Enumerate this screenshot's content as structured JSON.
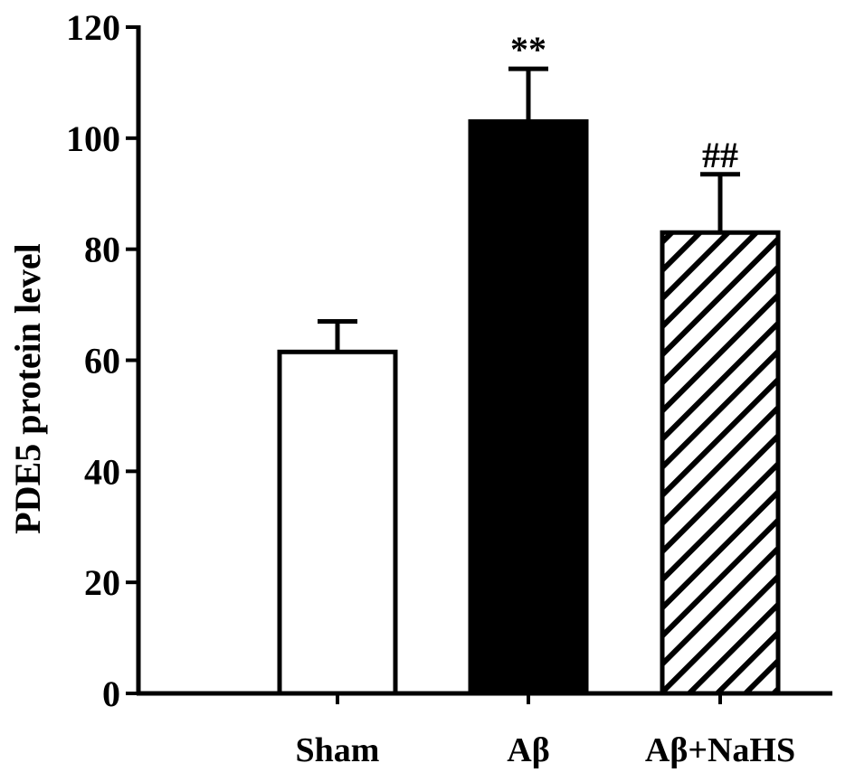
{
  "chart_data": {
    "type": "bar",
    "ylabel": "PDE5 protein level",
    "ylim": [
      0,
      120
    ],
    "yticks": [
      0,
      20,
      40,
      60,
      80,
      100,
      120
    ],
    "categories": [
      "Sham",
      "Aβ",
      "Aβ+NaHS"
    ],
    "values": [
      61.5,
      103,
      83
    ],
    "errors": [
      5.5,
      9.5,
      10.5
    ],
    "annotations": [
      "",
      "**",
      "##"
    ],
    "fills": [
      "white",
      "black",
      "hatched"
    ],
    "grid": false
  }
}
